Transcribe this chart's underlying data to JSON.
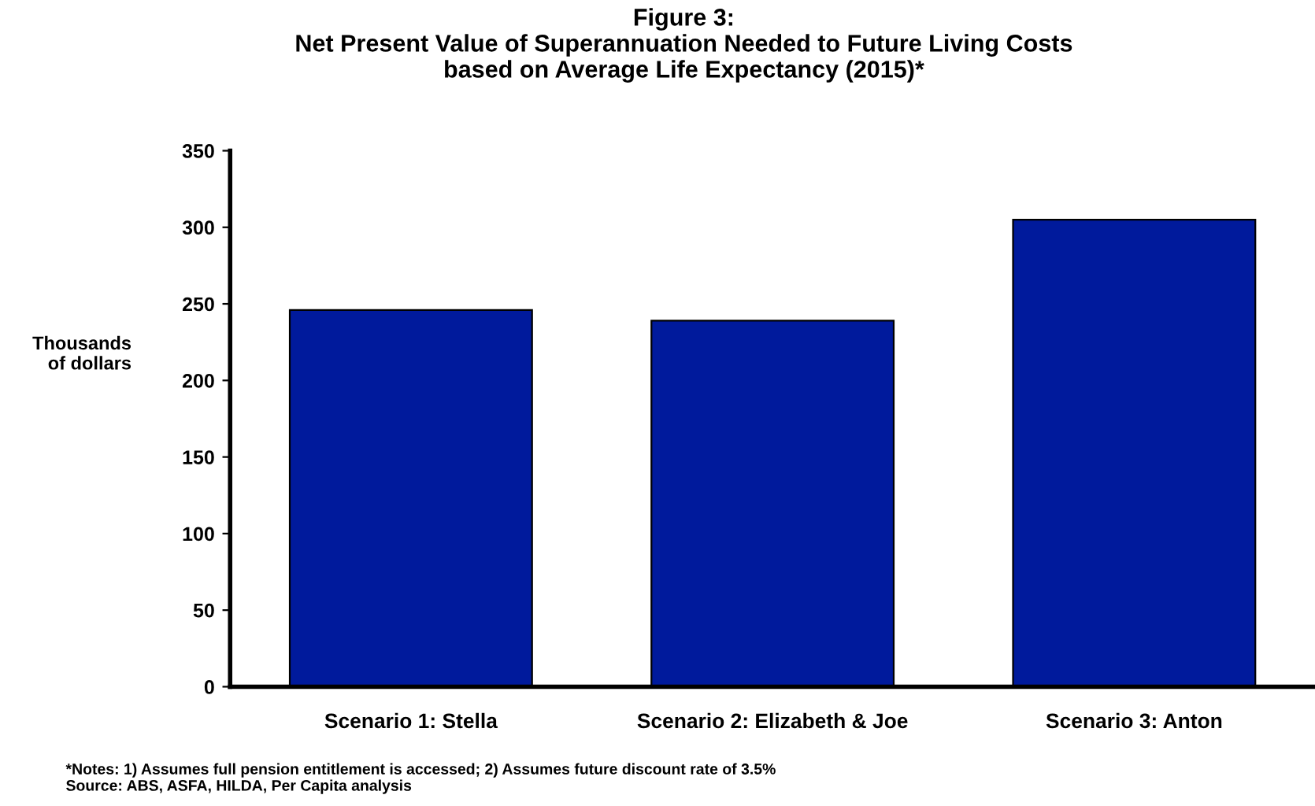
{
  "chart_data": {
    "type": "bar",
    "title": "Figure 3:\nNet Present Value of Superannuation Needed to Future Living Costs\nbased on Average Life Expectancy (2015)*",
    "ylabel": "Thousands\nof dollars",
    "categories": [
      "Scenario 1: Stella",
      "Scenario 2: Elizabeth & Joe",
      "Scenario 3: Anton"
    ],
    "values": [
      246,
      239,
      305
    ],
    "color": "#001a9c",
    "ylim": [
      0,
      350
    ],
    "yticks": [
      0,
      50,
      100,
      150,
      200,
      250,
      300,
      350
    ],
    "grid": false,
    "legend": false,
    "annotations": [
      "*Notes: 1) Assumes full pension entitlement is accessed; 2) Assumes future discount rate of 3.5%\nSource: ABS, ASFA, HILDA, Per Capita analysis"
    ]
  }
}
